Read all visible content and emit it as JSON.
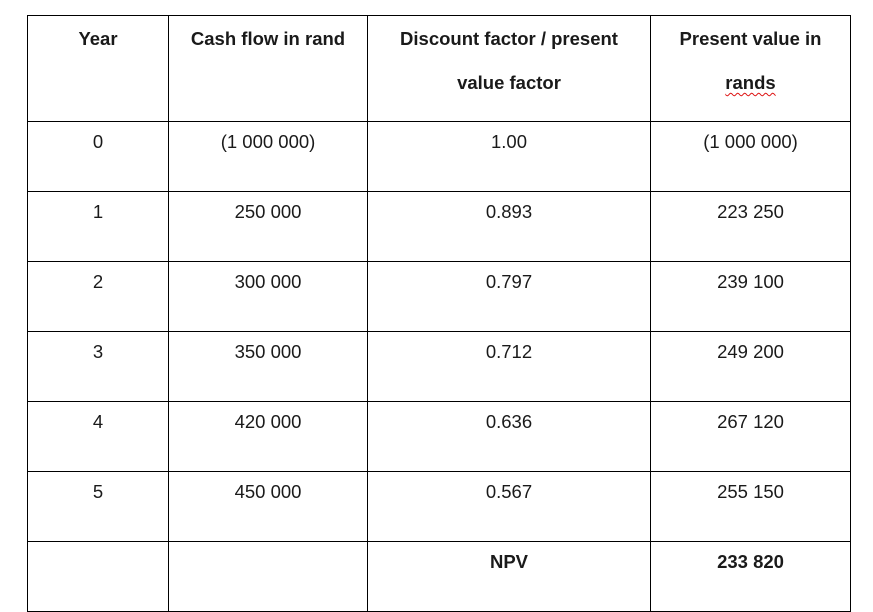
{
  "table": {
    "headers": {
      "year": "Year",
      "cash_flow": "Cash flow in rand",
      "discount_factor_line1": "Discount factor / present",
      "discount_factor_line2": "value factor",
      "present_value_line1": "Present value in",
      "present_value_line2": "rands"
    },
    "rows": [
      {
        "year": "0",
        "cash_flow": "(1 000 000)",
        "factor": "1.00",
        "present_value": "(1 000 000)"
      },
      {
        "year": "1",
        "cash_flow": "250 000",
        "factor": "0.893",
        "present_value": "223 250"
      },
      {
        "year": "2",
        "cash_flow": "300 000",
        "factor": "0.797",
        "present_value": "239 100"
      },
      {
        "year": "3",
        "cash_flow": "350 000",
        "factor": "0.712",
        "present_value": "249 200"
      },
      {
        "year": "4",
        "cash_flow": "420 000",
        "factor": "0.636",
        "present_value": "267 120"
      },
      {
        "year": "5",
        "cash_flow": "450 000",
        "factor": "0.567",
        "present_value": "255 150"
      }
    ],
    "total": {
      "label": "NPV",
      "value": "233 820"
    }
  }
}
